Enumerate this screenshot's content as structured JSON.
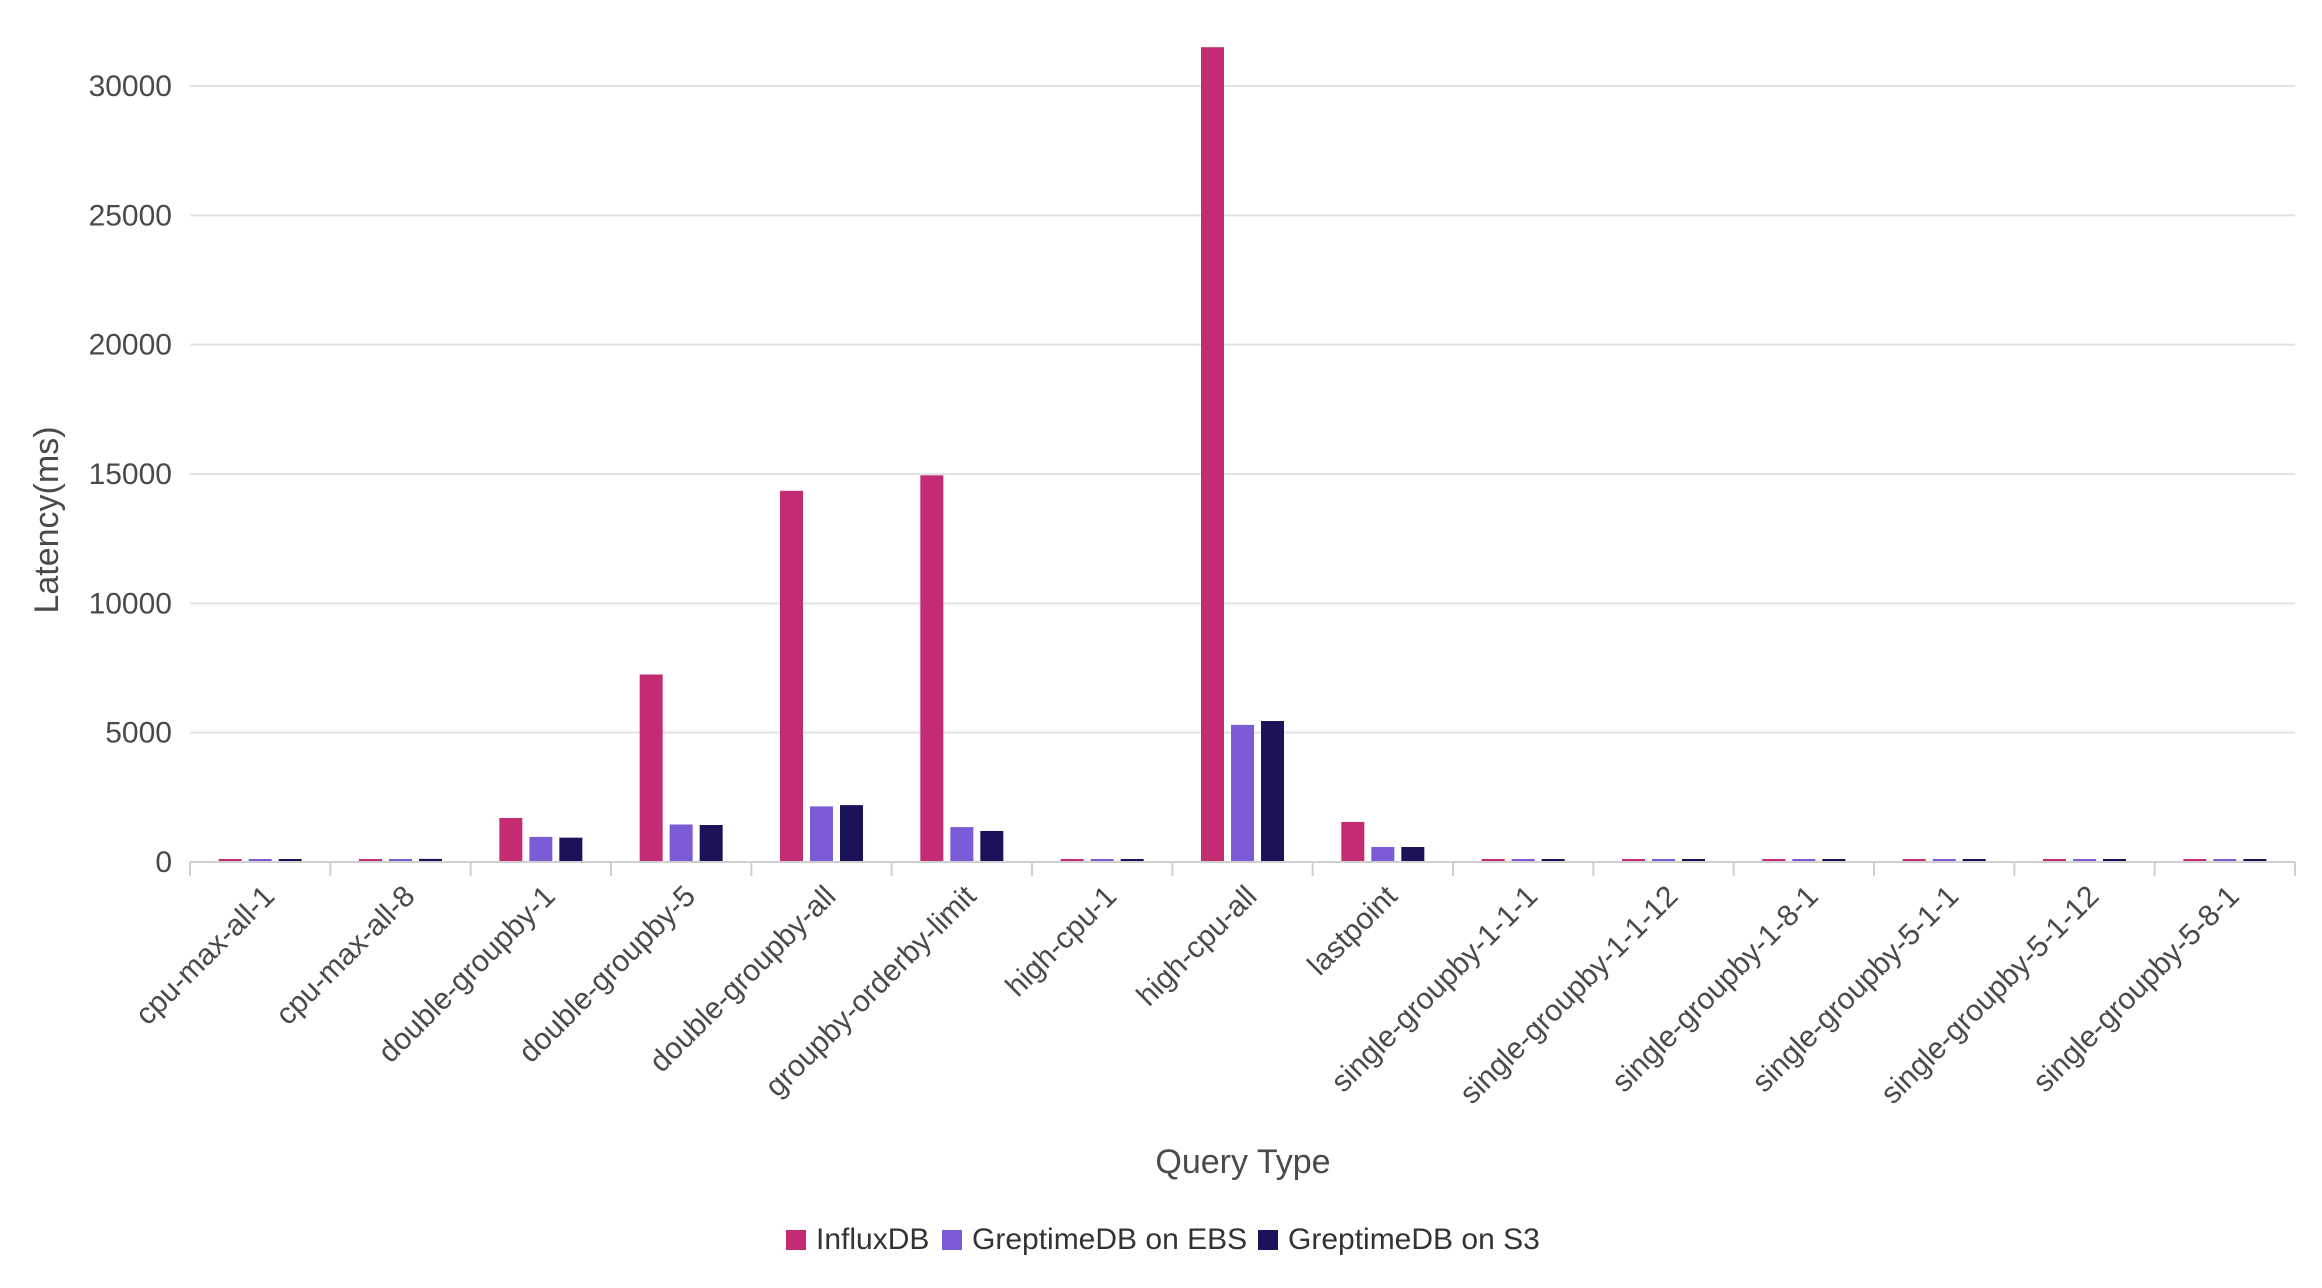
{
  "chart_data": {
    "type": "bar",
    "xlabel": "Query Type",
    "ylabel": "Latency(ms)",
    "ylim": [
      0,
      31500
    ],
    "yticks": [
      0,
      5000,
      10000,
      15000,
      20000,
      25000,
      30000
    ],
    "grid": true,
    "legend_position": "bottom-center",
    "categories": [
      "cpu-max-all-1",
      "cpu-max-all-8",
      "double-groupby-1",
      "double-groupby-5",
      "double-groupby-all",
      "groupby-orderby-limit",
      "high-cpu-1",
      "high-cpu-all",
      "lastpoint",
      "single-groupby-1-1-1",
      "single-groupby-1-1-12",
      "single-groupby-1-8-1",
      "single-groupby-5-1-1",
      "single-groupby-5-1-12",
      "single-groupby-5-8-1"
    ],
    "series": [
      {
        "name": "InfluxDB",
        "color": "#c32b73",
        "values": [
          60,
          80,
          1700,
          7250,
          14350,
          14950,
          50,
          31500,
          1550,
          40,
          40,
          50,
          40,
          40,
          60
        ]
      },
      {
        "name": "GreptimeDB on EBS",
        "color": "#7b5cd6",
        "values": [
          50,
          110,
          970,
          1450,
          2150,
          1350,
          40,
          5300,
          580,
          30,
          30,
          40,
          30,
          30,
          50
        ]
      },
      {
        "name": "GreptimeDB on S3",
        "color": "#1c1259",
        "values": [
          70,
          120,
          940,
          1430,
          2200,
          1200,
          50,
          5450,
          580,
          40,
          40,
          50,
          40,
          40,
          60
        ]
      }
    ]
  }
}
